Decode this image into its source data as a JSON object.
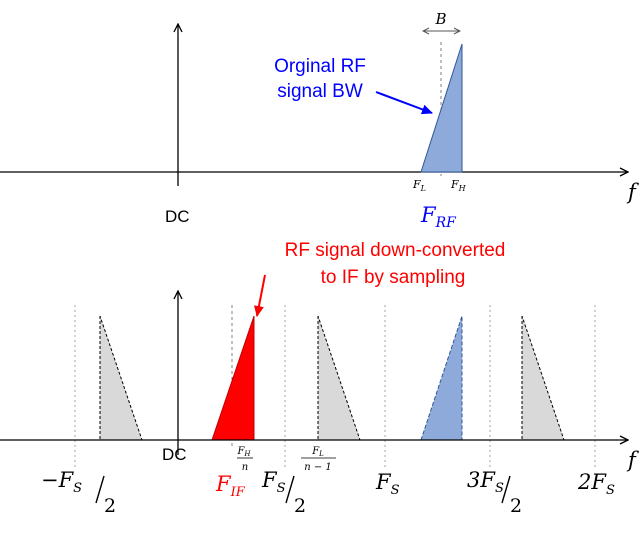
{
  "colors": {
    "axis": "#000000",
    "rf_band": "#8eaadb",
    "rf_band_stroke": "#2f5597",
    "image_band": "#d9d9d9",
    "if_band": "#ff0000",
    "guide_line": "#a6a6a6",
    "annotation_blue": "#0000ff",
    "annotation_red": "#ff0000"
  },
  "top_panel": {
    "axis_var": "f",
    "dc_label": "DC",
    "bandwidth_label": "B",
    "fl_main": "F",
    "fl_sub": "L",
    "fh_main": "F",
    "fh_sub": "H",
    "frf_main": "F",
    "frf_sub": "RF",
    "annotation_line1": "Orginal RF",
    "annotation_line2": "signal BW"
  },
  "bottom_panel": {
    "axis_var": "f",
    "dc_label": "DC",
    "annotation_line1": "RF signal down-converted",
    "annotation_line2": "to IF by sampling",
    "fh_over_n_num_main": "F",
    "fh_over_n_num_sub": "H",
    "fh_over_n_den": "n",
    "fl_over_n1_num_main": "F",
    "fl_over_n1_num_sub": "L",
    "fl_over_n1_den": "n − 1",
    "fif_main": "F",
    "fif_sub": "IF",
    "neg_half_fs_prefix": "−F",
    "neg_half_fs_sub": "S",
    "neg_half_fs_den": "2",
    "half_fs_main": "F",
    "half_fs_sub": "S",
    "half_fs_den": "2",
    "fs_main": "F",
    "fs_sub": "S",
    "three_half_fs_prefix": "3F",
    "three_half_fs_sub": "S",
    "three_half_fs_den": "2",
    "two_fs_prefix": "2F",
    "two_fs_sub": "S"
  }
}
